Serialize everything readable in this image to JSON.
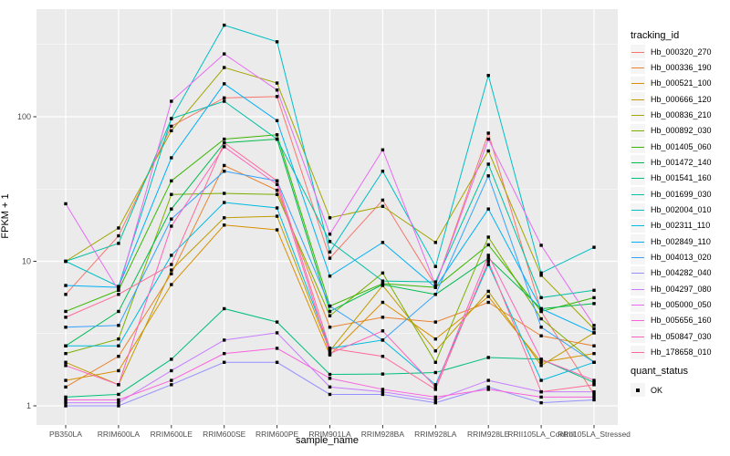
{
  "chart_data": {
    "type": "line",
    "title": "",
    "xlabel": "sample_name",
    "ylabel": "FPKM + 1",
    "y_scale": "log10",
    "y_ticks": [
      1,
      10,
      100
    ],
    "y_tick_labels": [
      "1",
      "10",
      "100"
    ],
    "y_minor_ticks": [
      3.162,
      31.62,
      316.2
    ],
    "ylim": [
      0.75,
      555
    ],
    "grid": true,
    "panel_bg": "#EBEBEB",
    "grid_color": "#FFFFFF",
    "axis_text_color": "#4D4D4D",
    "marker": {
      "shape": "square",
      "color": "#000000",
      "size": 3.4
    },
    "legend_title": "tracking_id",
    "legend_position": "right",
    "quant_legend": {
      "title": "quant_status",
      "items": [
        {
          "label": "OK",
          "marker": "black-square"
        }
      ]
    },
    "categories": [
      "PB350LA",
      "RRIM600LA",
      "RRIM600LE",
      "RRIM600SE",
      "RRIM600PE",
      "RRIM901LA",
      "RRIM928BA",
      "RRIM928LA",
      "RRIM928LE",
      "RRII105LA_Control",
      "RRII105LA_Stressed"
    ],
    "series": [
      {
        "name": "Hb_000320_270",
        "color": "#F8766D",
        "values": [
          5.9,
          15,
          86,
          135,
          138,
          10.5,
          26.5,
          6.8,
          77,
          4.5,
          1.2
        ]
      },
      {
        "name": "Hb_000336_190",
        "color": "#EA8331",
        "values": [
          1.35,
          2.2,
          8.2,
          46,
          31,
          3.5,
          4.1,
          3.8,
          5.2,
          3.05,
          2.6
        ]
      },
      {
        "name": "Hb_000521_100",
        "color": "#D89000",
        "values": [
          1.5,
          1.75,
          6.9,
          17.8,
          16.5,
          2.25,
          5.2,
          2.9,
          5.7,
          2.0,
          2.3
        ]
      },
      {
        "name": "Hb_000666_120",
        "color": "#C09B00",
        "values": [
          2.0,
          1.4,
          8.7,
          20,
          20.5,
          2.4,
          6.8,
          2.4,
          6.2,
          1.9,
          3.2
        ]
      },
      {
        "name": "Hb_000836_210",
        "color": "#A3A500",
        "values": [
          10,
          17,
          80,
          219,
          171,
          20,
          24,
          13.5,
          58,
          8.0,
          3.4
        ]
      },
      {
        "name": "Hb_000892_030",
        "color": "#7CAE00",
        "values": [
          2.3,
          2.9,
          29,
          29.5,
          29,
          4.2,
          8.3,
          2.0,
          14.7,
          4.0,
          2.0
        ]
      },
      {
        "name": "Hb_001405_060",
        "color": "#39B600",
        "values": [
          4.5,
          6.3,
          36,
          70,
          75,
          4.9,
          7.0,
          6.6,
          13,
          4.5,
          5.6
        ]
      },
      {
        "name": "Hb_001472_140",
        "color": "#00BB4E",
        "values": [
          2.6,
          4.5,
          23,
          66,
          70,
          4.5,
          6.9,
          5.9,
          10.5,
          4.7,
          5.1
        ]
      },
      {
        "name": "Hb_001541_160",
        "color": "#00BF7D",
        "values": [
          1.15,
          1.2,
          2.1,
          4.7,
          3.8,
          1.65,
          1.66,
          1.7,
          2.16,
          2.1,
          1.45
        ]
      },
      {
        "name": "Hb_001699_030",
        "color": "#00C1A3",
        "values": [
          10,
          13.3,
          97,
          128,
          70,
          13.7,
          7.3,
          7.2,
          47,
          5.6,
          6.3
        ]
      },
      {
        "name": "Hb_002004_010",
        "color": "#00BFC4",
        "values": [
          10,
          6.7,
          97,
          430,
          330,
          11.6,
          42,
          9.2,
          193,
          8.3,
          12.5
        ]
      },
      {
        "name": "Hb_002311_110",
        "color": "#00BAE0",
        "values": [
          2.6,
          2.6,
          11,
          25.5,
          23.4,
          2.5,
          2.85,
          1.4,
          9.5,
          1.5,
          2.0
        ]
      },
      {
        "name": "Hb_002849_110",
        "color": "#00B0F6",
        "values": [
          6.8,
          6.6,
          52,
          169,
          94,
          7.9,
          13.5,
          6.6,
          23,
          4.7,
          3.2
        ]
      },
      {
        "name": "Hb_004013_020",
        "color": "#35A2FF",
        "values": [
          3.5,
          3.6,
          19.6,
          42,
          36,
          4.9,
          2.85,
          5.9,
          39,
          3.5,
          2.0
        ]
      },
      {
        "name": "Hb_004282_040",
        "color": "#9590FF",
        "values": [
          1.0,
          1.0,
          1.4,
          2.0,
          2.0,
          1.2,
          1.2,
          1.05,
          1.35,
          1.05,
          1.1
        ]
      },
      {
        "name": "Hb_004297_080",
        "color": "#C77CFF",
        "values": [
          1.05,
          1.05,
          1.75,
          2.85,
          3.2,
          1.35,
          1.25,
          1.1,
          1.5,
          1.25,
          1.25
        ]
      },
      {
        "name": "Hb_005000_050",
        "color": "#E76BF3",
        "values": [
          25,
          6.3,
          128,
          272,
          153,
          15.4,
          59,
          6.8,
          70,
          12.9,
          3.6
        ]
      },
      {
        "name": "Hb_005656_160",
        "color": "#FA62DB",
        "values": [
          1.1,
          1.1,
          1.5,
          2.3,
          2.5,
          1.55,
          1.3,
          1.15,
          1.3,
          1.15,
          1.15
        ]
      },
      {
        "name": "Hb_050847_030",
        "color": "#FF62BC",
        "values": [
          1.9,
          1.4,
          17.5,
          62,
          34,
          2.3,
          3.3,
          1.35,
          11,
          2.1,
          1.5
        ]
      },
      {
        "name": "Hb_178658_010",
        "color": "#FF6A98",
        "values": [
          4.1,
          5.9,
          9.5,
          66,
          36,
          2.5,
          2.2,
          1.3,
          10,
          1.25,
          1.4
        ]
      }
    ]
  }
}
